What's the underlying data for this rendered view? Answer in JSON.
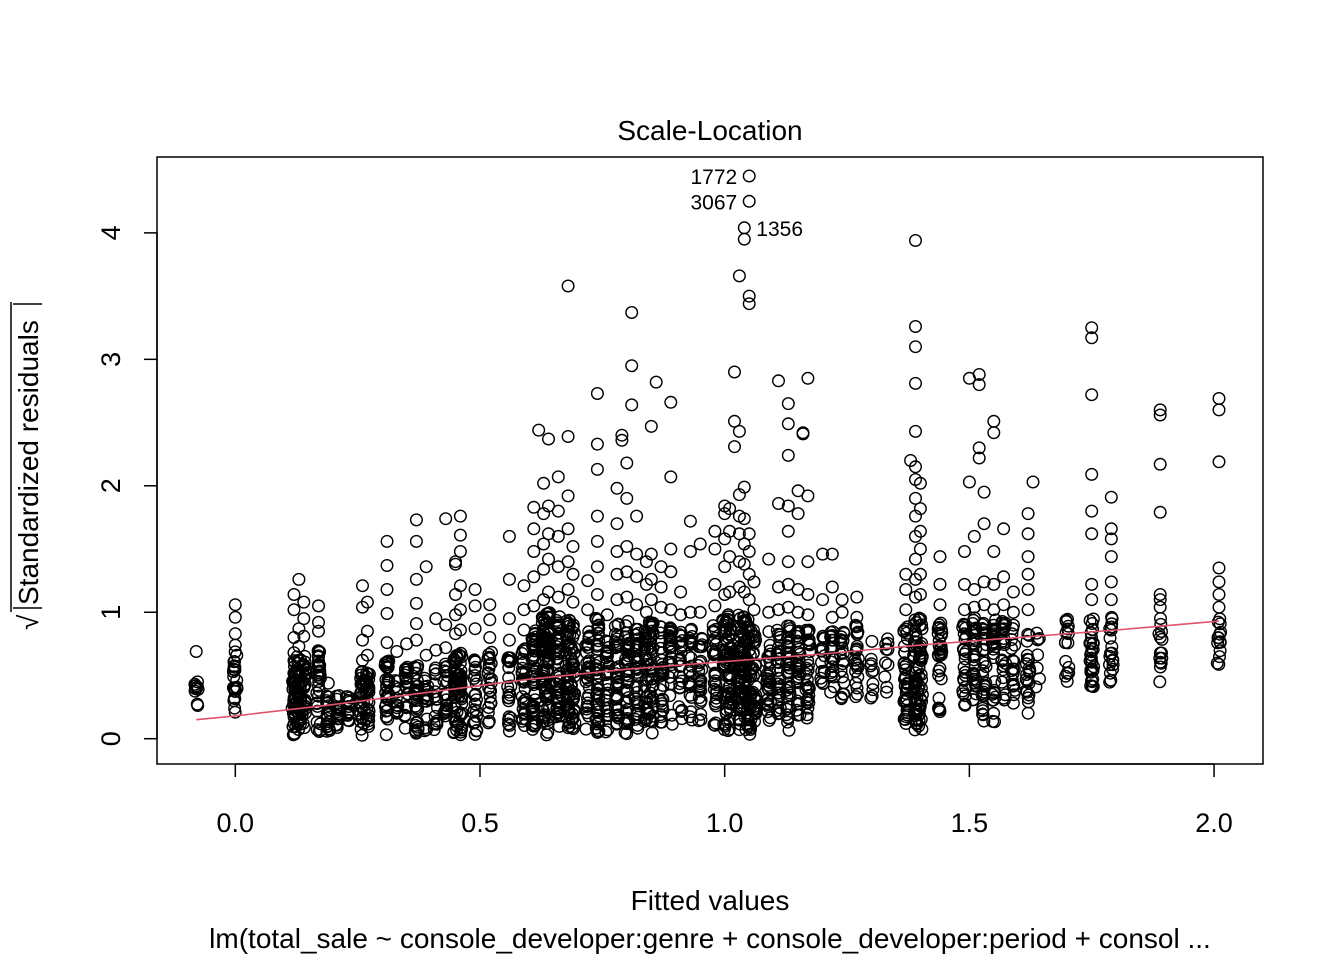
{
  "chart_data": {
    "type": "scatter",
    "title": "Scale-Location",
    "xlabel": "Fitted values",
    "ylabel": "√|Standardized residuals|",
    "ylabel_radical": "√",
    "ylabel_text": "Standardized residuals",
    "subtitle": "lm(total_sale ~ console_developer:genre + console_developer:period + consol ...",
    "xlim": [
      -0.16,
      2.1
    ],
    "ylim": [
      -0.2,
      4.6
    ],
    "x_ticks": [
      0.0,
      0.5,
      1.0,
      1.5,
      2.0
    ],
    "x_tick_labels": [
      "0.0",
      "0.5",
      "1.0",
      "1.5",
      "2.0"
    ],
    "y_ticks": [
      0,
      1,
      2,
      3,
      4
    ],
    "y_tick_labels": [
      "0",
      "1",
      "2",
      "3",
      "4"
    ],
    "grid": false,
    "point_color": "#000000",
    "smooth_color": "#DF536B",
    "smooth_line": {
      "x": [
        -0.08,
        0.0,
        0.2,
        0.4,
        0.6,
        0.8,
        1.0,
        1.2,
        1.4,
        1.6,
        1.8,
        2.01
      ],
      "y": [
        0.15,
        0.18,
        0.27,
        0.37,
        0.47,
        0.55,
        0.61,
        0.67,
        0.74,
        0.8,
        0.86,
        0.93
      ]
    },
    "labeled_points": [
      {
        "x": 1.05,
        "y": 4.45,
        "label": "1772",
        "side": "left"
      },
      {
        "x": 1.05,
        "y": 4.25,
        "label": "3067",
        "side": "left"
      },
      {
        "x": 1.04,
        "y": 4.04,
        "label": "1356",
        "side": "right"
      }
    ],
    "highlighted_outliers": [
      {
        "x": 0.68,
        "y": 3.58
      },
      {
        "x": 0.81,
        "y": 3.37
      },
      {
        "x": 1.03,
        "y": 3.66
      },
      {
        "x": 1.05,
        "y": 3.5
      },
      {
        "x": 1.05,
        "y": 3.44
      },
      {
        "x": 1.04,
        "y": 3.95
      },
      {
        "x": 1.39,
        "y": 3.94
      },
      {
        "x": 1.39,
        "y": 3.26
      },
      {
        "x": 1.39,
        "y": 3.1
      },
      {
        "x": 1.39,
        "y": 2.81
      },
      {
        "x": 1.39,
        "y": 2.43
      },
      {
        "x": 1.75,
        "y": 3.25
      },
      {
        "x": 1.75,
        "y": 3.17
      },
      {
        "x": 1.75,
        "y": 2.72
      },
      {
        "x": 2.01,
        "y": 2.69
      },
      {
        "x": 2.01,
        "y": 2.6
      },
      {
        "x": 2.01,
        "y": 2.19
      },
      {
        "x": 1.89,
        "y": 2.6
      },
      {
        "x": 1.89,
        "y": 2.56
      },
      {
        "x": 1.89,
        "y": 2.17
      },
      {
        "x": 1.89,
        "y": 1.79
      },
      {
        "x": 0.81,
        "y": 2.95
      },
      {
        "x": 0.81,
        "y": 2.64
      },
      {
        "x": 0.86,
        "y": 2.82
      },
      {
        "x": 0.89,
        "y": 2.66
      },
      {
        "x": 0.85,
        "y": 2.47
      },
      {
        "x": 0.74,
        "y": 2.73
      },
      {
        "x": 0.62,
        "y": 2.44
      },
      {
        "x": 0.64,
        "y": 2.37
      },
      {
        "x": 0.68,
        "y": 2.39
      },
      {
        "x": 0.79,
        "y": 2.4
      },
      {
        "x": 0.79,
        "y": 2.36
      },
      {
        "x": 0.74,
        "y": 2.33
      },
      {
        "x": 1.02,
        "y": 2.9
      },
      {
        "x": 1.02,
        "y": 2.51
      },
      {
        "x": 1.03,
        "y": 2.43
      },
      {
        "x": 1.02,
        "y": 2.31
      },
      {
        "x": 1.11,
        "y": 2.83
      },
      {
        "x": 1.17,
        "y": 2.85
      },
      {
        "x": 1.13,
        "y": 2.65
      },
      {
        "x": 1.13,
        "y": 2.49
      },
      {
        "x": 1.16,
        "y": 2.41
      },
      {
        "x": 1.16,
        "y": 2.42
      },
      {
        "x": 1.13,
        "y": 2.24
      },
      {
        "x": 1.5,
        "y": 2.85
      },
      {
        "x": 1.52,
        "y": 2.88
      },
      {
        "x": 1.52,
        "y": 2.8
      },
      {
        "x": 1.55,
        "y": 2.51
      },
      {
        "x": 1.55,
        "y": 2.42
      },
      {
        "x": 1.52,
        "y": 2.3
      },
      {
        "x": 1.52,
        "y": 2.22
      },
      {
        "x": 1.38,
        "y": 2.2
      },
      {
        "x": 1.39,
        "y": 2.15
      },
      {
        "x": 1.5,
        "y": 2.03
      },
      {
        "x": 1.53,
        "y": 1.95
      },
      {
        "x": 1.63,
        "y": 2.03
      },
      {
        "x": 1.75,
        "y": 2.09
      },
      {
        "x": 1.79,
        "y": 1.91
      }
    ],
    "dense_columns": [
      {
        "x": -0.08,
        "n": 10,
        "ymin": 0.2,
        "ymax": 0.48,
        "outliers": [
          0.69
        ]
      },
      {
        "x": 0.0,
        "n": 24,
        "ymin": 0.12,
        "ymax": 0.7,
        "outliers": [
          0.74,
          0.83,
          0.96,
          1.06
        ]
      },
      {
        "x": 0.12,
        "n": 40,
        "ymin": 0.02,
        "ymax": 0.62,
        "outliers": [
          0.68,
          0.8,
          1.02,
          1.14
        ]
      },
      {
        "x": 0.13,
        "n": 36,
        "ymin": 0.03,
        "ymax": 0.66,
        "outliers": [
          0.73,
          0.87,
          1.26
        ]
      },
      {
        "x": 0.14,
        "n": 30,
        "ymin": 0.06,
        "ymax": 0.7,
        "outliers": [
          0.81,
          0.95,
          1.08
        ]
      },
      {
        "x": 0.17,
        "n": 34,
        "ymin": 0.02,
        "ymax": 0.7,
        "outliers": [
          0.85,
          0.92,
          1.05
        ]
      },
      {
        "x": 0.19,
        "n": 18,
        "ymin": 0.05,
        "ymax": 0.38,
        "outliers": [
          0.44
        ]
      },
      {
        "x": 0.21,
        "n": 18,
        "ymin": 0.08,
        "ymax": 0.36,
        "outliers": []
      },
      {
        "x": 0.23,
        "n": 14,
        "ymin": 0.1,
        "ymax": 0.34,
        "outliers": []
      },
      {
        "x": 0.26,
        "n": 30,
        "ymin": 0.02,
        "ymax": 0.55,
        "outliers": [
          0.62,
          0.78,
          1.04,
          1.21
        ]
      },
      {
        "x": 0.27,
        "n": 26,
        "ymin": 0.04,
        "ymax": 0.56,
        "outliers": [
          0.66,
          0.85,
          1.08
        ]
      },
      {
        "x": 0.31,
        "n": 32,
        "ymin": 0.02,
        "ymax": 0.62,
        "outliers": [
          0.76,
          0.99,
          1.18,
          1.37,
          1.56
        ]
      },
      {
        "x": 0.33,
        "n": 12,
        "ymin": 0.16,
        "ymax": 0.48,
        "outliers": [
          0.69
        ]
      },
      {
        "x": 0.35,
        "n": 20,
        "ymin": 0.02,
        "ymax": 0.58,
        "outliers": [
          0.75
        ]
      },
      {
        "x": 0.37,
        "n": 30,
        "ymin": 0.04,
        "ymax": 0.62,
        "outliers": [
          0.78,
          0.91,
          1.07,
          1.26,
          1.56,
          1.73
        ]
      },
      {
        "x": 0.39,
        "n": 18,
        "ymin": 0.05,
        "ymax": 0.52,
        "outliers": [
          0.66,
          1.36
        ]
      },
      {
        "x": 0.41,
        "n": 16,
        "ymin": 0.06,
        "ymax": 0.58,
        "outliers": [
          0.7,
          0.95
        ]
      },
      {
        "x": 0.43,
        "n": 20,
        "ymin": 0.08,
        "ymax": 0.6,
        "outliers": [
          0.72,
          0.9,
          1.74
        ]
      },
      {
        "x": 0.45,
        "n": 36,
        "ymin": 0.03,
        "ymax": 0.66,
        "outliers": [
          0.83,
          0.98,
          1.14,
          1.38,
          1.4
        ]
      },
      {
        "x": 0.46,
        "n": 38,
        "ymin": 0.02,
        "ymax": 0.7,
        "outliers": [
          0.86,
          1.02,
          1.21,
          1.48,
          1.61,
          1.76
        ]
      },
      {
        "x": 0.49,
        "n": 24,
        "ymin": 0.03,
        "ymax": 0.66,
        "outliers": [
          0.87,
          1.05,
          1.18
        ]
      },
      {
        "x": 0.52,
        "n": 24,
        "ymin": 0.06,
        "ymax": 0.7,
        "outliers": [
          0.8,
          0.94,
          1.06
        ]
      },
      {
        "x": 0.56,
        "n": 22,
        "ymin": 0.03,
        "ymax": 0.66,
        "outliers": [
          0.78,
          0.95,
          1.26,
          1.6
        ]
      },
      {
        "x": 0.59,
        "n": 30,
        "ymin": 0.08,
        "ymax": 0.74,
        "outliers": [
          0.86,
          1.02,
          1.21
        ]
      },
      {
        "x": 0.61,
        "n": 48,
        "ymin": 0.05,
        "ymax": 0.9,
        "outliers": [
          1.05,
          1.28,
          1.48,
          1.66,
          1.83
        ]
      },
      {
        "x": 0.63,
        "n": 52,
        "ymin": 0.02,
        "ymax": 0.96,
        "outliers": [
          1.1,
          1.34,
          1.54,
          1.78,
          2.02
        ]
      },
      {
        "x": 0.64,
        "n": 52,
        "ymin": 0.02,
        "ymax": 1.0,
        "outliers": [
          1.16,
          1.42,
          1.62,
          1.84
        ]
      },
      {
        "x": 0.66,
        "n": 52,
        "ymin": 0.03,
        "ymax": 0.98,
        "outliers": [
          1.12,
          1.36,
          1.6,
          1.8,
          2.07
        ]
      },
      {
        "x": 0.68,
        "n": 46,
        "ymin": 0.04,
        "ymax": 0.96,
        "outliers": [
          1.18,
          1.4,
          1.66,
          1.92
        ]
      },
      {
        "x": 0.69,
        "n": 40,
        "ymin": 0.06,
        "ymax": 0.92,
        "outliers": [
          1.08,
          1.3,
          1.52
        ]
      },
      {
        "x": 0.72,
        "n": 34,
        "ymin": 0.05,
        "ymax": 0.86,
        "outliers": [
          1.02,
          1.25
        ]
      },
      {
        "x": 0.74,
        "n": 48,
        "ymin": 0.02,
        "ymax": 0.96,
        "outliers": [
          1.14,
          1.36,
          1.56,
          1.76,
          2.13
        ]
      },
      {
        "x": 0.76,
        "n": 30,
        "ymin": 0.05,
        "ymax": 0.84,
        "outliers": [
          0.98
        ]
      },
      {
        "x": 0.78,
        "n": 38,
        "ymin": 0.05,
        "ymax": 0.92,
        "outliers": [
          1.1,
          1.3,
          1.48,
          1.7,
          1.98
        ]
      },
      {
        "x": 0.8,
        "n": 40,
        "ymin": 0.04,
        "ymax": 0.94,
        "outliers": [
          1.12,
          1.32,
          1.52,
          1.9,
          2.18
        ]
      },
      {
        "x": 0.82,
        "n": 34,
        "ymin": 0.06,
        "ymax": 0.9,
        "outliers": [
          1.06,
          1.28,
          1.46,
          1.76
        ]
      },
      {
        "x": 0.84,
        "n": 30,
        "ymin": 0.06,
        "ymax": 0.86,
        "outliers": [
          1.0,
          1.22,
          1.4
        ]
      },
      {
        "x": 0.85,
        "n": 38,
        "ymin": 0.03,
        "ymax": 0.94,
        "outliers": [
          1.1,
          1.26,
          1.46
        ]
      },
      {
        "x": 0.87,
        "n": 30,
        "ymin": 0.04,
        "ymax": 0.9,
        "outliers": [
          1.04,
          1.2,
          1.36
        ]
      },
      {
        "x": 0.89,
        "n": 26,
        "ymin": 0.08,
        "ymax": 0.88,
        "outliers": [
          1.02,
          1.32,
          1.5,
          2.07
        ]
      },
      {
        "x": 0.91,
        "n": 22,
        "ymin": 0.12,
        "ymax": 0.86,
        "outliers": [
          0.98,
          1.16
        ]
      },
      {
        "x": 0.93,
        "n": 24,
        "ymin": 0.1,
        "ymax": 0.88,
        "outliers": [
          1.0,
          1.48,
          1.72
        ]
      },
      {
        "x": 0.95,
        "n": 26,
        "ymin": 0.06,
        "ymax": 0.82,
        "outliers": [
          1.0,
          1.54
        ]
      },
      {
        "x": 0.98,
        "n": 30,
        "ymin": 0.08,
        "ymax": 0.9,
        "outliers": [
          1.05,
          1.22,
          1.5,
          1.64
        ]
      },
      {
        "x": 1.0,
        "n": 40,
        "ymin": 0.06,
        "ymax": 0.96,
        "outliers": [
          1.14,
          1.36,
          1.58,
          1.78,
          1.84
        ]
      },
      {
        "x": 1.01,
        "n": 44,
        "ymin": 0.04,
        "ymax": 0.98,
        "outliers": [
          1.16,
          1.44,
          1.64,
          1.82
        ]
      },
      {
        "x": 1.03,
        "n": 44,
        "ymin": 0.02,
        "ymax": 1.0,
        "outliers": [
          1.2,
          1.4,
          1.62,
          1.76,
          1.93
        ]
      },
      {
        "x": 1.04,
        "n": 46,
        "ymin": 0.03,
        "ymax": 0.98,
        "outliers": [
          1.16,
          1.38,
          1.54,
          1.74,
          1.99
        ]
      },
      {
        "x": 1.05,
        "n": 40,
        "ymin": 0.03,
        "ymax": 0.96,
        "outliers": [
          1.1,
          1.3,
          1.48,
          1.62
        ]
      },
      {
        "x": 1.06,
        "n": 30,
        "ymin": 0.06,
        "ymax": 0.88,
        "outliers": [
          1.02,
          1.24
        ]
      },
      {
        "x": 1.09,
        "n": 30,
        "ymin": 0.1,
        "ymax": 0.88,
        "outliers": [
          1.0,
          1.42
        ]
      },
      {
        "x": 1.11,
        "n": 30,
        "ymin": 0.12,
        "ymax": 0.86,
        "outliers": [
          1.02,
          1.2,
          1.86
        ]
      },
      {
        "x": 1.13,
        "n": 34,
        "ymin": 0.06,
        "ymax": 0.92,
        "outliers": [
          1.04,
          1.22,
          1.4,
          1.64,
          1.84
        ]
      },
      {
        "x": 1.15,
        "n": 30,
        "ymin": 0.08,
        "ymax": 0.88,
        "outliers": [
          1.0,
          1.18,
          1.78,
          1.96
        ]
      },
      {
        "x": 1.17,
        "n": 30,
        "ymin": 0.16,
        "ymax": 0.86,
        "outliers": [
          0.98,
          1.14,
          1.4,
          1.92
        ]
      },
      {
        "x": 1.2,
        "n": 16,
        "ymin": 0.4,
        "ymax": 0.84,
        "outliers": [
          1.1,
          1.46
        ]
      },
      {
        "x": 1.22,
        "n": 20,
        "ymin": 0.32,
        "ymax": 0.86,
        "outliers": [
          0.96,
          1.2,
          1.46
        ]
      },
      {
        "x": 1.24,
        "n": 20,
        "ymin": 0.25,
        "ymax": 0.88,
        "outliers": [
          1.0,
          1.1
        ]
      },
      {
        "x": 1.27,
        "n": 22,
        "ymin": 0.18,
        "ymax": 0.9,
        "outliers": [
          0.96,
          1.12
        ]
      },
      {
        "x": 1.3,
        "n": 10,
        "ymin": 0.3,
        "ymax": 0.8,
        "outliers": []
      },
      {
        "x": 1.33,
        "n": 10,
        "ymin": 0.24,
        "ymax": 0.84,
        "outliers": []
      },
      {
        "x": 1.37,
        "n": 36,
        "ymin": 0.1,
        "ymax": 0.9,
        "outliers": [
          1.02,
          1.18,
          1.3
        ]
      },
      {
        "x": 1.39,
        "n": 44,
        "ymin": 0.04,
        "ymax": 0.98,
        "outliers": [
          1.12,
          1.26,
          1.42,
          1.6,
          1.76,
          1.9,
          2.05
        ]
      },
      {
        "x": 1.4,
        "n": 40,
        "ymin": 0.06,
        "ymax": 0.96,
        "outliers": [
          1.14,
          1.3,
          1.5,
          1.64,
          1.82,
          2.02
        ]
      },
      {
        "x": 1.44,
        "n": 30,
        "ymin": 0.2,
        "ymax": 0.92,
        "outliers": [
          1.06,
          1.22,
          1.44
        ]
      },
      {
        "x": 1.49,
        "n": 26,
        "ymin": 0.26,
        "ymax": 0.92,
        "outliers": [
          1.02,
          1.22,
          1.48
        ]
      },
      {
        "x": 1.51,
        "n": 30,
        "ymin": 0.28,
        "ymax": 0.96,
        "outliers": [
          1.04,
          1.18,
          1.6
        ]
      },
      {
        "x": 1.53,
        "n": 30,
        "ymin": 0.1,
        "ymax": 0.94,
        "outliers": [
          1.06,
          1.24,
          1.7
        ]
      },
      {
        "x": 1.55,
        "n": 30,
        "ymin": 0.12,
        "ymax": 0.94,
        "outliers": [
          1.02,
          1.22,
          1.48
        ]
      },
      {
        "x": 1.57,
        "n": 24,
        "ymin": 0.3,
        "ymax": 0.94,
        "outliers": [
          1.06,
          1.28,
          1.66
        ]
      },
      {
        "x": 1.59,
        "n": 20,
        "ymin": 0.26,
        "ymax": 0.9,
        "outliers": [
          1.0,
          1.16
        ]
      },
      {
        "x": 1.62,
        "n": 20,
        "ymin": 0.2,
        "ymax": 0.92,
        "outliers": [
          1.02,
          1.18,
          1.3,
          1.44,
          1.62,
          1.78
        ]
      },
      {
        "x": 1.64,
        "n": 8,
        "ymin": 0.38,
        "ymax": 0.92,
        "outliers": []
      },
      {
        "x": 1.7,
        "n": 16,
        "ymin": 0.38,
        "ymax": 0.96,
        "outliers": []
      },
      {
        "x": 1.75,
        "n": 30,
        "ymin": 0.38,
        "ymax": 1.0,
        "outliers": [
          1.1,
          1.22,
          1.62,
          1.8
        ]
      },
      {
        "x": 1.79,
        "n": 20,
        "ymin": 0.38,
        "ymax": 0.98,
        "outliers": [
          1.1,
          1.24,
          1.44,
          1.58,
          1.66
        ]
      },
      {
        "x": 1.89,
        "n": 14,
        "ymin": 0.4,
        "ymax": 0.96,
        "outliers": [
          1.04,
          1.1,
          1.14
        ]
      },
      {
        "x": 2.01,
        "n": 14,
        "ymin": 0.58,
        "ymax": 0.96,
        "outliers": [
          1.04,
          1.14,
          1.24,
          1.35
        ]
      }
    ]
  }
}
